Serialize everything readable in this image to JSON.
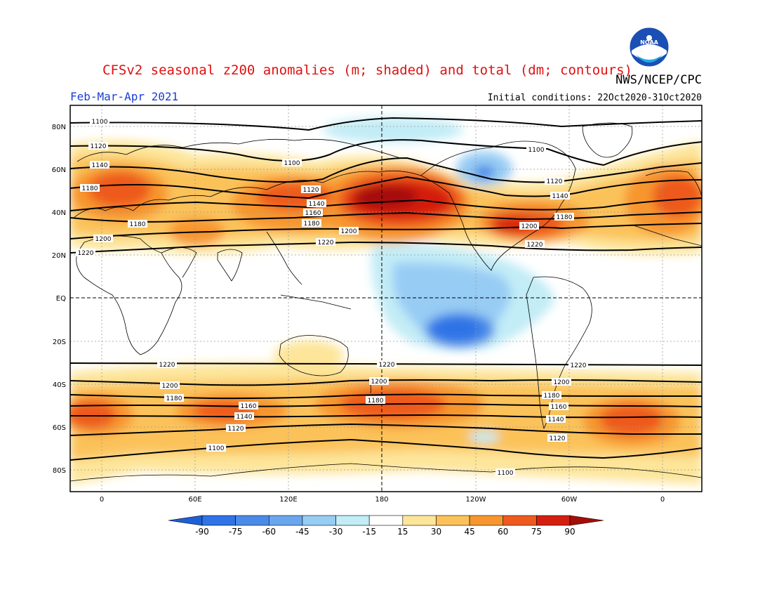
{
  "header": {
    "title": "CFSv2 seasonal z200 anomalies (m; shaded) and total (dm; contours)",
    "agency": "NWS/NCEP/CPC",
    "period": "Feb-Mar-Apr 2021",
    "initial_conditions": "Initial conditions: 22Oct2020-31Oct2020",
    "logo_text": "NOAA"
  },
  "axes": {
    "lat_labels": [
      "80N",
      "60N",
      "40N",
      "20N",
      "EQ",
      "20S",
      "40S",
      "60S",
      "80S"
    ],
    "lat_values": [
      80,
      60,
      40,
      20,
      0,
      -20,
      -40,
      -60,
      -80
    ],
    "lon_labels": [
      "0",
      "60E",
      "120E",
      "180",
      "120W",
      "60W",
      "0"
    ],
    "lon_values": [
      0,
      60,
      120,
      180,
      240,
      300,
      360
    ]
  },
  "colorbar": {
    "ticks": [
      "-90",
      "-75",
      "-60",
      "-45",
      "-30",
      "-15",
      "15",
      "30",
      "45",
      "60",
      "75",
      "90"
    ],
    "colors": [
      "#1e5fd8",
      "#2f73e6",
      "#4a8be8",
      "#6aa6ee",
      "#97ccf4",
      "#c2ecf6",
      "#ffffff",
      "#fde59a",
      "#fbc25a",
      "#f7962f",
      "#ee5a1e",
      "#d41f10",
      "#a50d07"
    ]
  },
  "contour_labels": [
    {
      "id": "c1100a",
      "text": "1100"
    },
    {
      "id": "c1120a",
      "text": "1120"
    },
    {
      "id": "c1140a",
      "text": "1140"
    },
    {
      "id": "c1180a",
      "text": "1180"
    },
    {
      "id": "c1180b",
      "text": "1180"
    },
    {
      "id": "c1200a",
      "text": "1200"
    },
    {
      "id": "c1220a",
      "text": "1220"
    },
    {
      "id": "c1100b",
      "text": "1100"
    },
    {
      "id": "c1120b",
      "text": "1120"
    },
    {
      "id": "c1140b",
      "text": "1140"
    },
    {
      "id": "c1160b",
      "text": "1160"
    },
    {
      "id": "c1180c",
      "text": "1180"
    },
    {
      "id": "c1200b",
      "text": "1200"
    },
    {
      "id": "c1220b",
      "text": "1220"
    },
    {
      "id": "c1100c",
      "text": "1100"
    },
    {
      "id": "c1120c",
      "text": "1120"
    },
    {
      "id": "c1140c",
      "text": "1140"
    },
    {
      "id": "c1180d",
      "text": "1180"
    },
    {
      "id": "c1200c",
      "text": "1200"
    },
    {
      "id": "c1220c",
      "text": "1220"
    },
    {
      "id": "c1220d",
      "text": "1220"
    },
    {
      "id": "c1200d",
      "text": "1200"
    },
    {
      "id": "c1180e",
      "text": "1180"
    },
    {
      "id": "c1160e",
      "text": "1160"
    },
    {
      "id": "c1140e",
      "text": "1140"
    },
    {
      "id": "c1120e",
      "text": "1120"
    },
    {
      "id": "c1100e",
      "text": "1100"
    },
    {
      "id": "c1220f",
      "text": "1220"
    },
    {
      "id": "c1200f",
      "text": "1200"
    },
    {
      "id": "c1180f",
      "text": "1180"
    },
    {
      "id": "c1220g",
      "text": "1220"
    },
    {
      "id": "c1200g",
      "text": "1200"
    },
    {
      "id": "c1180g",
      "text": "1180"
    },
    {
      "id": "c1160g",
      "text": "1160"
    },
    {
      "id": "c1140g",
      "text": "1140"
    },
    {
      "id": "c1120g",
      "text": "1120"
    },
    {
      "id": "c1100g",
      "text": "1100"
    }
  ]
}
